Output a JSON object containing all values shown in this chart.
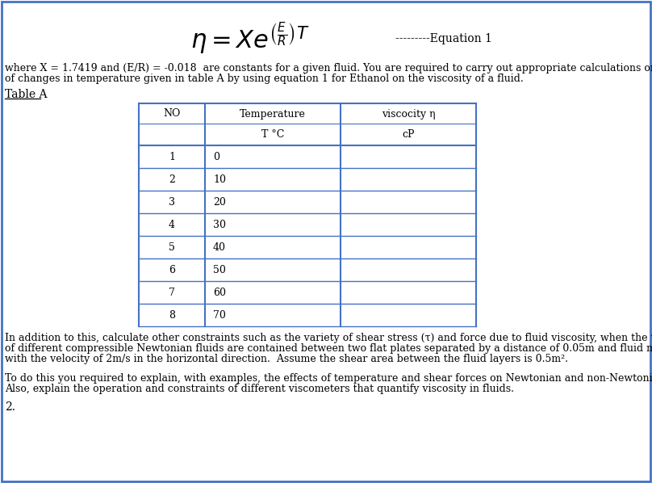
{
  "equation_text": "$\\eta = Xe^{\\left(\\frac{E}{R}\\right)T}$",
  "equation_label": "---------Equation 1",
  "line1": "where X = 1.7419 and (E/R) = -0.018  are constants for a given fluid. You are required to carry out appropriate calculations on the effect",
  "line2": "of changes in temperature given in table A by using equation 1 for Ethanol on the viscosity of a fluid.",
  "table_label": "Table A",
  "col_headers": [
    "NO",
    "Temperature",
    "viscocity η"
  ],
  "col_subheaders": [
    "",
    "T °C",
    "cP"
  ],
  "table_rows": [
    [
      "1",
      "0",
      ""
    ],
    [
      "2",
      "10",
      ""
    ],
    [
      "3",
      "20",
      ""
    ],
    [
      "4",
      "30",
      ""
    ],
    [
      "5",
      "40",
      ""
    ],
    [
      "6",
      "50",
      ""
    ],
    [
      "7",
      "60",
      ""
    ],
    [
      "8",
      "70",
      ""
    ]
  ],
  "para1_line1": "In addition to this, calculate other constraints such as the variety of shear stress (τ) and force due to fluid viscosity, when the two layers",
  "para1_line2": "of different compressible Newtonian fluids are contained between two flat plates separated by a distance of 0.05m and fluid moving",
  "para1_line3": "with the velocity of 2m/s in the horizontal direction.  Assume the shear area between the fluid layers is 0.5m².",
  "para2_line1": "To do this you required to explain, with examples, the effects of temperature and shear forces on Newtonian and non-Newtonian fluid.",
  "para2_line2": "Also, explain the operation and constraints of different viscometers that quantify viscosity in fluids.",
  "number_label": "2.",
  "bg_color": "#ffffff",
  "border_color": "#4472c4",
  "text_color": "#000000",
  "table_border_color": "#4472c4",
  "font_size": 9,
  "eq_font_size": 22
}
